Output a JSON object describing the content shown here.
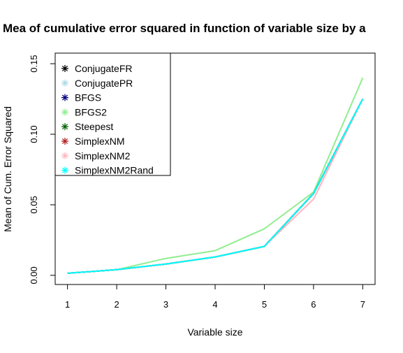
{
  "chart_data": {
    "type": "line",
    "title": "Mea of cumulative error squared in function of variable size by a",
    "xlabel": "Variable size",
    "ylabel": "Mean of Cum. Error Squared",
    "x": [
      1,
      2,
      3,
      4,
      5,
      6,
      7
    ],
    "x_ticks": [
      "1",
      "2",
      "3",
      "4",
      "5",
      "6",
      "7"
    ],
    "y_ticks": [
      "0.00",
      "0.05",
      "0.10",
      "0.15"
    ],
    "xlim": [
      0.75,
      7.25
    ],
    "ylim": [
      -0.0065,
      0.1575
    ],
    "grid": false,
    "legend_position": "top-left",
    "series": [
      {
        "name": "ConjugateFR",
        "color": "#000000",
        "values": [
          0.0015,
          0.004,
          0.008,
          0.013,
          0.0205,
          0.058,
          0.125
        ]
      },
      {
        "name": "ConjugatePR",
        "color": "#add8e6",
        "values": [
          0.0015,
          0.004,
          0.008,
          0.013,
          0.0205,
          0.058,
          0.125
        ]
      },
      {
        "name": "BFGS",
        "color": "#000080",
        "values": [
          0.0015,
          0.004,
          0.008,
          0.013,
          0.0205,
          0.058,
          0.125
        ]
      },
      {
        "name": "BFGS2",
        "color": "#90ee90",
        "values": [
          0.0015,
          0.004,
          0.012,
          0.0175,
          0.033,
          0.059,
          0.14
        ]
      },
      {
        "name": "Steepest",
        "color": "#006400",
        "values": [
          0.0015,
          0.004,
          0.008,
          0.013,
          0.0205,
          0.058,
          0.125
        ]
      },
      {
        "name": "SimplexNM",
        "color": "#b22222",
        "values": [
          0.0015,
          0.004,
          0.008,
          0.013,
          0.0205,
          0.058,
          0.125
        ]
      },
      {
        "name": "SimplexNM2",
        "color": "#ffb6c1",
        "values": [
          0.0015,
          0.004,
          0.008,
          0.013,
          0.0205,
          0.054,
          0.125
        ]
      },
      {
        "name": "SimplexNM2Rand",
        "color": "#00ffff",
        "values": [
          0.0015,
          0.004,
          0.008,
          0.013,
          0.0205,
          0.058,
          0.125
        ]
      }
    ]
  }
}
